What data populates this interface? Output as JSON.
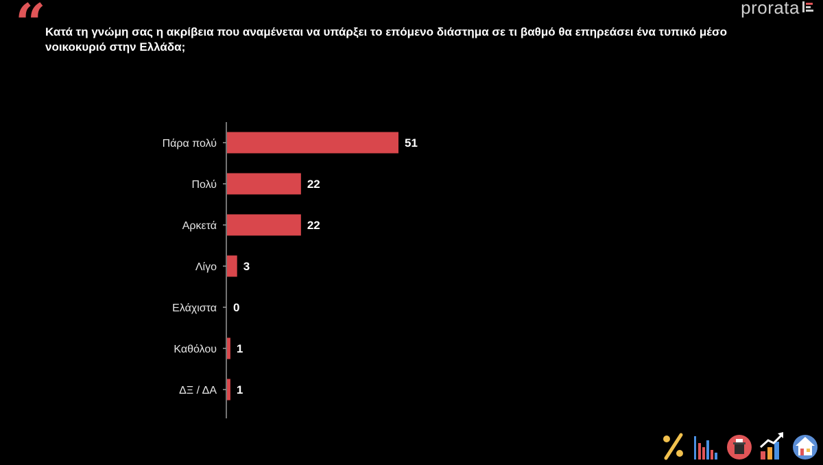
{
  "header": {
    "quote_glyph": "“",
    "title": "Κατά τη γνώμη σας η ακρίβεια που αναμένεται να υπάρξει το επόμενο διάστημα σε τι βαθμό θα επηρεάσει ένα τυπικό μέσο νοικοκυριό στην Ελλάδα;",
    "brand": "prorata"
  },
  "colors": {
    "bar": "#d9474c",
    "axis": "#9a9a9a",
    "label": "#e6e6e6",
    "value": "#ffffff",
    "accent": "#e05557"
  },
  "icons": [
    "percent-icon",
    "bar-chart-icon",
    "ballot-box-icon",
    "growth-chart-icon",
    "house-icon"
  ],
  "chart_data": {
    "type": "bar",
    "orientation": "horizontal",
    "categories": [
      "Πάρα πολύ",
      "Πολύ",
      "Αρκετά",
      "Λίγο",
      "Ελάχιστα",
      "Καθόλου",
      "ΔΞ / ΔΑ"
    ],
    "values": [
      51,
      22,
      22,
      3,
      0,
      1,
      1
    ],
    "xlim": [
      0,
      100
    ],
    "title": "Κατά τη γνώμη σας η ακρίβεια που αναμένεται να υπάρξει το επόμενο διάστημα σε τι βαθμό θα επηρεάσει ένα τυπικό μέσο νοικοκυριό στην Ελλάδα;",
    "xlabel": "",
    "ylabel": "",
    "grid": false,
    "data_labels": true
  }
}
